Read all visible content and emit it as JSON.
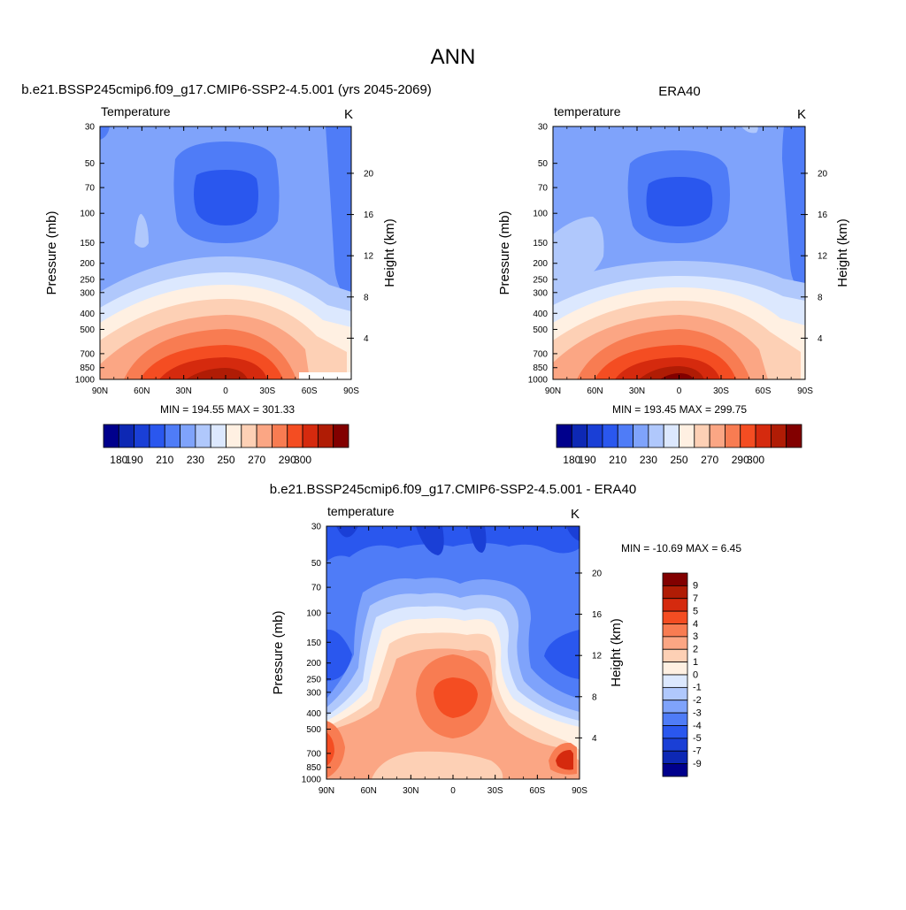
{
  "page_title": "ANN",
  "chart_data": [
    {
      "type": "heatmap",
      "title": "b.e21.BSSP245cmip6.f09_g17.CMIP6-SSP2-4.5.001 (yrs 2045-2069)",
      "left_label": "Temperature",
      "units": "K",
      "ylabel": "Pressure (mb)",
      "ylabel_right": "Height (km)",
      "x_ticks": [
        "90N",
        "60N",
        "30N",
        "0",
        "30S",
        "60S",
        "90S"
      ],
      "y_ticks": [
        "30",
        "50",
        "70",
        "100",
        "150",
        "200",
        "250",
        "300",
        "400",
        "500",
        "700",
        "850",
        "1000"
      ],
      "y_ticks_right": [
        "20",
        "16",
        "12",
        "8",
        "4"
      ],
      "stats": "MIN = 194.55  MAX = 301.33",
      "xlim": [
        90,
        -90
      ],
      "ylim": [
        1000,
        30
      ],
      "colorbar_labels": [
        "180",
        "190",
        "210",
        "230",
        "250",
        "270",
        "290",
        "300"
      ]
    },
    {
      "type": "heatmap",
      "title": "ERA40",
      "left_label": "temperature",
      "units": "K",
      "ylabel": "Pressure (mb)",
      "ylabel_right": "Height (km)",
      "x_ticks": [
        "90N",
        "60N",
        "30N",
        "0",
        "30S",
        "60S",
        "90S"
      ],
      "y_ticks": [
        "30",
        "50",
        "70",
        "100",
        "150",
        "200",
        "250",
        "300",
        "400",
        "500",
        "700",
        "850",
        "1000"
      ],
      "y_ticks_right": [
        "20",
        "16",
        "12",
        "8",
        "4"
      ],
      "stats": "MIN = 193.45  MAX = 299.75",
      "xlim": [
        90,
        -90
      ],
      "ylim": [
        1000,
        30
      ],
      "colorbar_labels": [
        "180",
        "190",
        "210",
        "230",
        "250",
        "270",
        "290",
        "300"
      ]
    },
    {
      "type": "heatmap",
      "title": "b.e21.BSSP245cmip6.f09_g17.CMIP6-SSP2-4.5.001 - ERA40",
      "left_label": "temperature",
      "units": "K",
      "ylabel": "Pressure (mb)",
      "ylabel_right": "Height (km)",
      "x_ticks": [
        "90N",
        "60N",
        "30N",
        "0",
        "30S",
        "60S",
        "90S"
      ],
      "y_ticks": [
        "30",
        "50",
        "70",
        "100",
        "150",
        "200",
        "250",
        "300",
        "400",
        "500",
        "700",
        "850",
        "1000"
      ],
      "y_ticks_right": [
        "20",
        "16",
        "12",
        "8",
        "4"
      ],
      "stats": "MIN = -10.69  MAX =   6.45",
      "xlim": [
        90,
        -90
      ],
      "ylim": [
        1000,
        30
      ],
      "colorbar_labels": [
        "9",
        "7",
        "5",
        "4",
        "3",
        "2",
        "1",
        "0",
        "-1",
        "-2",
        "-3",
        "-4",
        "-5",
        "-7",
        "-9"
      ]
    }
  ],
  "colors": {
    "abs_scale": [
      "#00008c",
      "#0d28b4",
      "#1a3fd6",
      "#2a57ee",
      "#4f7cf7",
      "#7fa3fb",
      "#b0c8fc",
      "#dce8fe",
      "#fff0e2",
      "#fdd0b5",
      "#fba684",
      "#f87c52",
      "#f44d22",
      "#d52a0e",
      "#b01c05",
      "#820000"
    ],
    "diff_scale": [
      "#820000",
      "#b01c05",
      "#d52a0e",
      "#f44d22",
      "#f87c52",
      "#fba684",
      "#fdd0b5",
      "#fff0e2",
      "#dce8fe",
      "#b0c8fc",
      "#7fa3fb",
      "#4f7cf7",
      "#2a57ee",
      "#1a3fd6",
      "#0d28b4",
      "#00008c"
    ]
  }
}
